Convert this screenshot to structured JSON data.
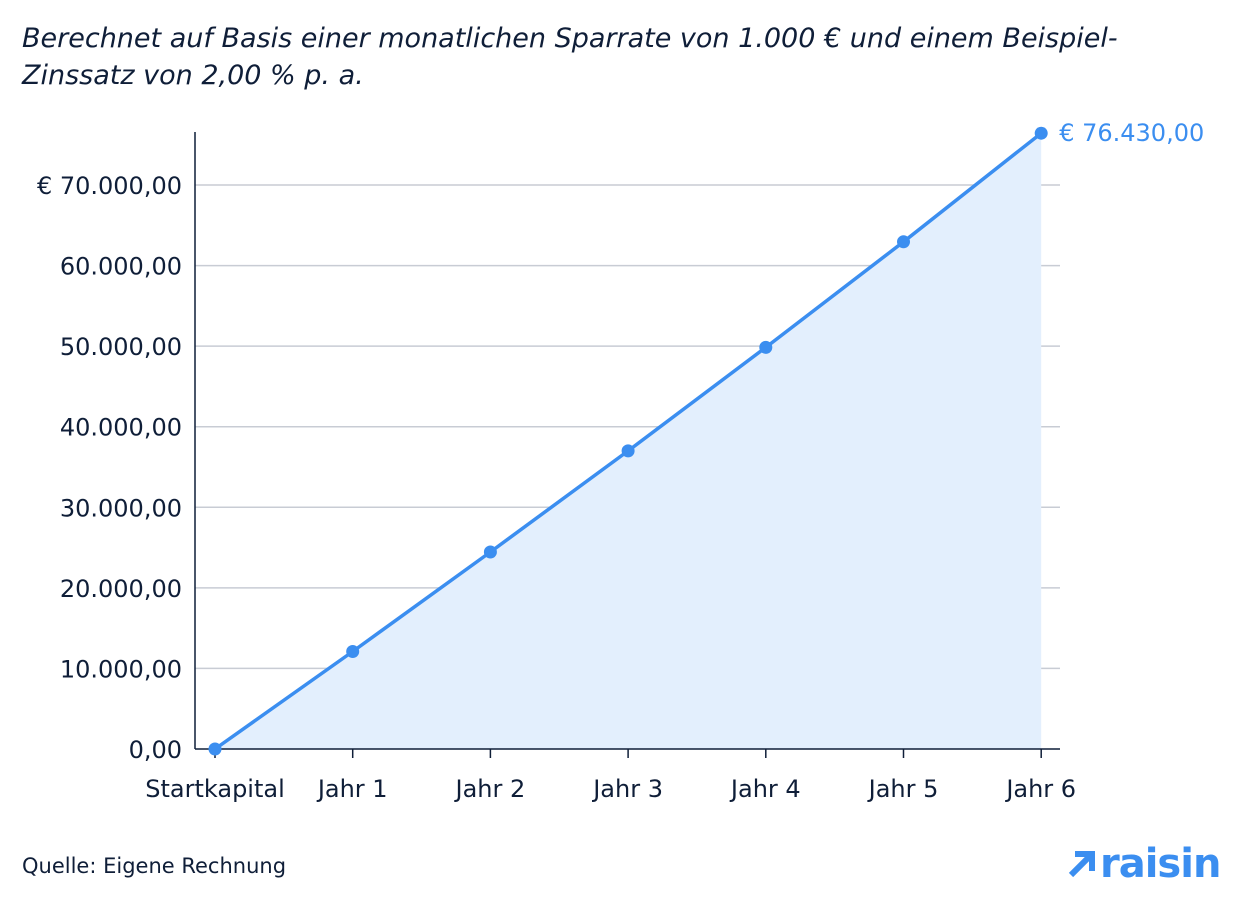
{
  "subtitle": "Berechnet auf Basis einer monatlichen Sparrate von 1.000 € und einem Beispiel-Zinssatz von 2,00 % p. a.",
  "source": "Quelle: Eigene Rechnung",
  "logo_text": "raisin",
  "colors": {
    "line": "#3b8ef0",
    "area": "#e3effd",
    "grid": "#c8ccd4",
    "axis": "#0f1e38",
    "text": "#0f1e38"
  },
  "chart_data": {
    "type": "area",
    "categories": [
      "Startkapital",
      "Jahr 1",
      "Jahr 2",
      "Jahr 3",
      "Jahr 4",
      "Jahr 5",
      "Jahr 6"
    ],
    "values": [
      0,
      12100,
      24450,
      37000,
      49850,
      62950,
      76430
    ],
    "ylim": [
      0,
      70000
    ],
    "yticks": [
      0,
      10000,
      20000,
      30000,
      40000,
      50000,
      60000,
      70000
    ],
    "ytick_labels": [
      "0,00",
      "10.000,00",
      "20.000,00",
      "30.000,00",
      "40.000,00",
      "50.000,00",
      "60.000,00",
      "€ 70.000,00"
    ],
    "end_label": "€ 76.430,00",
    "grid": true,
    "xlabel": "",
    "ylabel": ""
  }
}
